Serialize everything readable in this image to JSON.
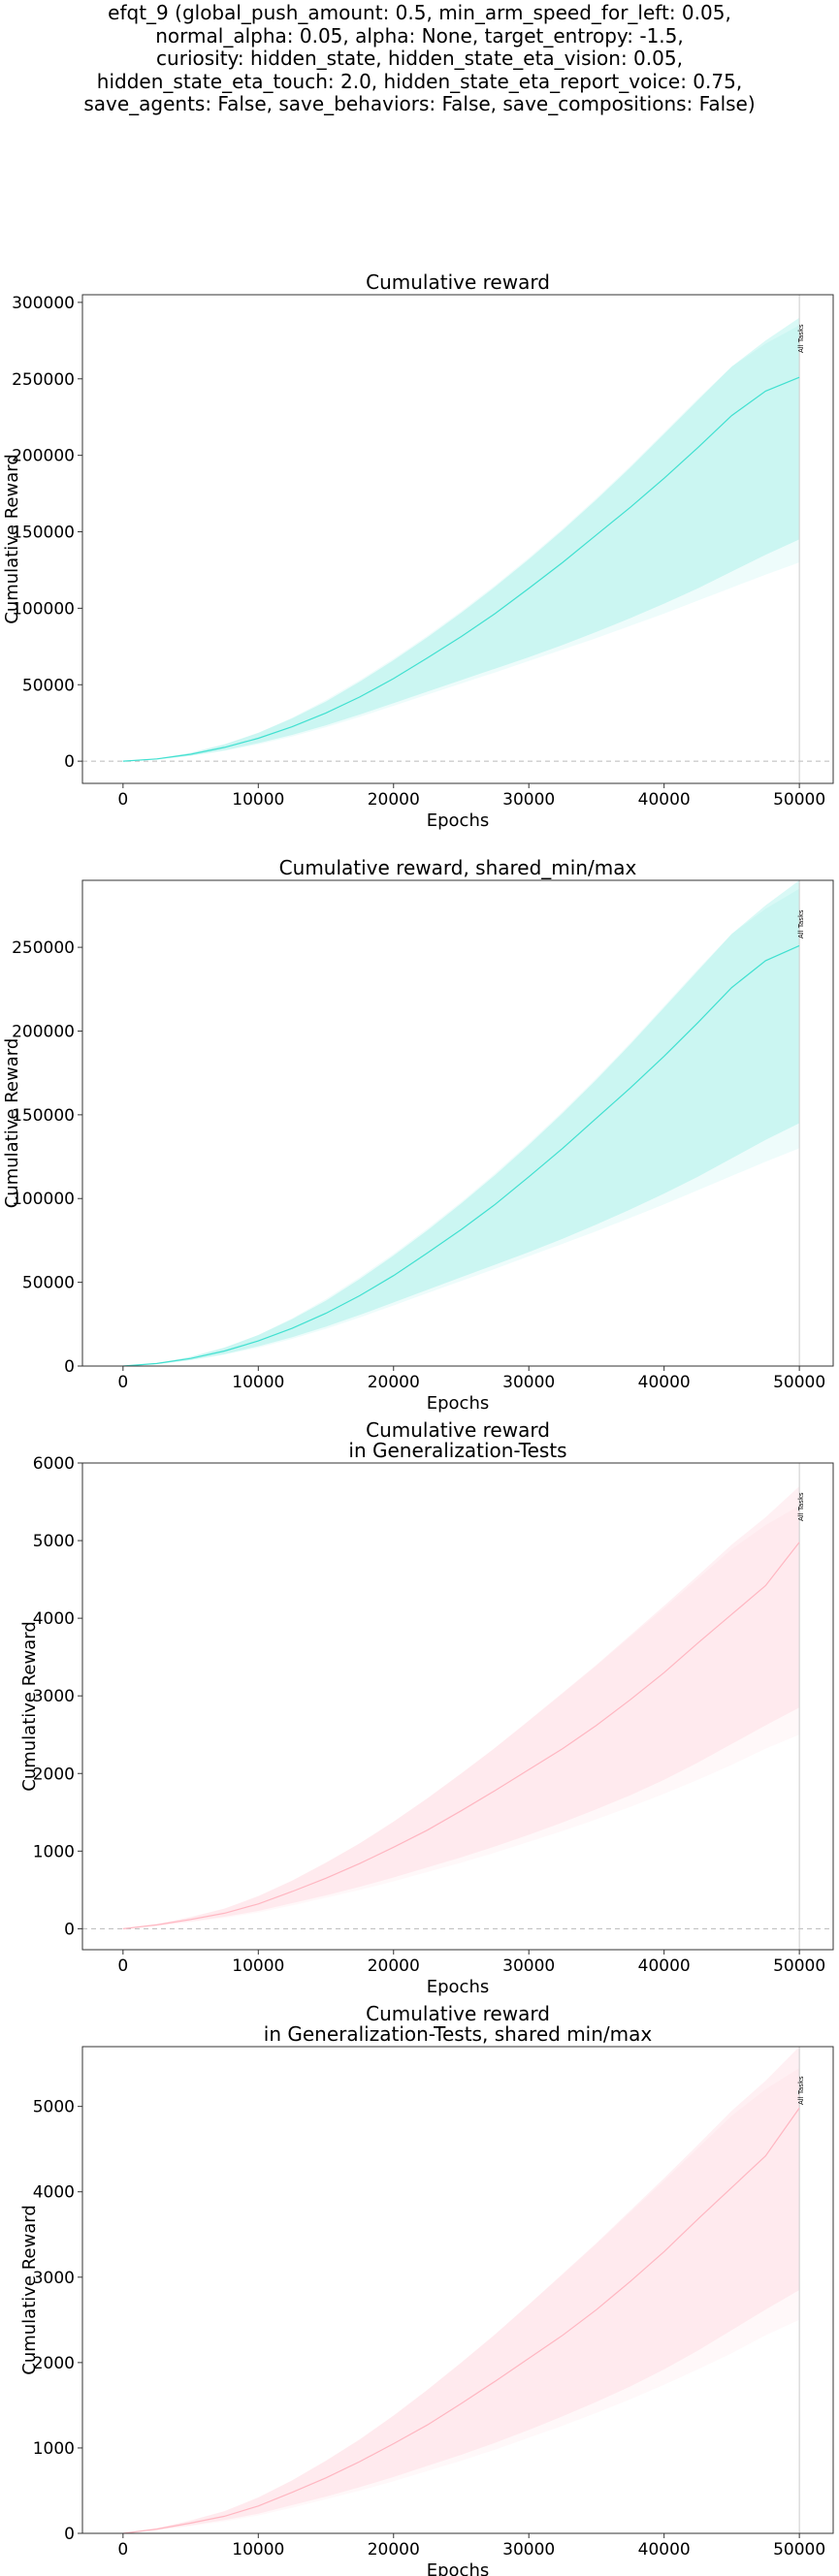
{
  "figure_title_lines": [
    "efqt_9 (global_push_amount: 0.5, min_arm_speed_for_left: 0.05,",
    "normal_alpha: 0.05, alpha: None, target_entropy: -1.5,",
    "curiosity: hidden_state, hidden_state_eta_vision: 0.05,",
    "hidden_state_eta_touch: 2.0, hidden_state_eta_report_voice: 0.75,",
    "save_agents: False, save_behaviors: False, save_compositions: False)"
  ],
  "colors": {
    "train_line": "#40e0d0",
    "train_band": "#40e0d0",
    "gen_line": "#ffb6c1",
    "gen_band": "#ffb6c1",
    "vline": "#cccccc",
    "zero_line": "#bbbbbb"
  },
  "chart_data": [
    {
      "type": "line",
      "title_lines": [
        "Cumulative reward"
      ],
      "xlabel": "Epochs",
      "ylabel": "Cumulative Reward",
      "xlim": [
        -3000,
        52500
      ],
      "ylim": [
        -14500,
        305000
      ],
      "xticks": [
        0,
        10000,
        20000,
        30000,
        40000,
        50000
      ],
      "yticks": [
        0,
        50000,
        100000,
        150000,
        200000,
        250000,
        300000
      ],
      "zero_line": true,
      "vline": {
        "x": 50000,
        "label": "All Tasks"
      },
      "color_key": "train",
      "x": [
        0,
        2500,
        5000,
        7500,
        10000,
        12500,
        15000,
        17500,
        20000,
        22500,
        25000,
        27500,
        30000,
        32500,
        35000,
        37500,
        40000,
        42500,
        45000,
        47500,
        50000
      ],
      "mean": [
        0,
        1500,
        4500,
        9000,
        15000,
        22500,
        31500,
        42000,
        54000,
        67500,
        81500,
        96500,
        113000,
        130000,
        148000,
        166000,
        185000,
        205000,
        226000,
        242000,
        251000
      ],
      "max": [
        0,
        1800,
        5500,
        11000,
        18500,
        28000,
        39000,
        52000,
        66000,
        81000,
        97000,
        114000,
        132000,
        151000,
        171000,
        192000,
        214000,
        236000,
        258000,
        275000,
        290000
      ],
      "min": [
        0,
        1200,
        3600,
        7200,
        11800,
        17200,
        23500,
        30500,
        38000,
        45500,
        53000,
        60500,
        68000,
        76000,
        84500,
        93500,
        103000,
        113000,
        124000,
        135000,
        145000
      ],
      "max_outer": [
        0,
        1800,
        5500,
        11000,
        18500,
        28500,
        40000,
        53000,
        67000,
        82000,
        98000,
        115000,
        133000,
        152000,
        172000,
        193000,
        215000,
        237000,
        258000,
        273000,
        285000
      ],
      "min_outer": [
        0,
        1100,
        3300,
        6700,
        11000,
        16200,
        22200,
        29000,
        36200,
        43500,
        50800,
        58000,
        65500,
        73000,
        80500,
        88500,
        96500,
        105000,
        113500,
        122000,
        130000
      ]
    },
    {
      "type": "line",
      "title_lines": [
        "Cumulative reward, shared_min/max"
      ],
      "xlabel": "Epochs",
      "ylabel": "Cumulative Reward",
      "xlim": [
        -3000,
        52500
      ],
      "ylim": [
        0,
        290000
      ],
      "xticks": [
        0,
        10000,
        20000,
        30000,
        40000,
        50000
      ],
      "yticks": [
        0,
        50000,
        100000,
        150000,
        200000,
        250000
      ],
      "zero_line": false,
      "vline": {
        "x": 50000,
        "label": "All Tasks"
      },
      "color_key": "train",
      "x": [
        0,
        2500,
        5000,
        7500,
        10000,
        12500,
        15000,
        17500,
        20000,
        22500,
        25000,
        27500,
        30000,
        32500,
        35000,
        37500,
        40000,
        42500,
        45000,
        47500,
        50000
      ],
      "mean": [
        0,
        1500,
        4500,
        9000,
        15000,
        22500,
        31500,
        42000,
        54000,
        67500,
        81500,
        96500,
        113000,
        130000,
        148000,
        166000,
        185000,
        205000,
        226000,
        242000,
        251000
      ],
      "max": [
        0,
        1800,
        5500,
        11000,
        18500,
        28000,
        39000,
        52000,
        66000,
        81000,
        97000,
        114000,
        132000,
        151000,
        171000,
        192000,
        214000,
        236000,
        258000,
        275000,
        290000
      ],
      "min": [
        0,
        1200,
        3600,
        7200,
        11800,
        17200,
        23500,
        30500,
        38000,
        45500,
        53000,
        60500,
        68000,
        76000,
        84500,
        93500,
        103000,
        113000,
        124000,
        135000,
        145000
      ],
      "max_outer": [
        0,
        1800,
        5500,
        11000,
        18500,
        28500,
        40000,
        53000,
        67000,
        82000,
        98000,
        115000,
        133000,
        152000,
        172000,
        193000,
        215000,
        237000,
        258000,
        273000,
        285000
      ],
      "min_outer": [
        0,
        1100,
        3300,
        6700,
        11000,
        16200,
        22200,
        29000,
        36200,
        43500,
        50800,
        58000,
        65500,
        73000,
        80500,
        88500,
        96500,
        105000,
        113500,
        122000,
        130000
      ]
    },
    {
      "type": "line",
      "title_lines": [
        "Cumulative reward",
        "in Generalization-Tests"
      ],
      "xlabel": "Epochs",
      "ylabel": "Cumulative Reward",
      "xlim": [
        -3000,
        52500
      ],
      "ylim": [
        -270,
        6000
      ],
      "xticks": [
        0,
        10000,
        20000,
        30000,
        40000,
        50000
      ],
      "yticks": [
        0,
        1000,
        2000,
        3000,
        4000,
        5000,
        6000
      ],
      "zero_line": true,
      "vline": {
        "x": 50000,
        "label": "All Tasks"
      },
      "color_key": "gen",
      "x": [
        0,
        2500,
        5000,
        7500,
        10000,
        12500,
        15000,
        17500,
        20000,
        22500,
        25000,
        27500,
        30000,
        32500,
        35000,
        37500,
        40000,
        42500,
        45000,
        47500,
        50000
      ],
      "mean": [
        0,
        50,
        120,
        200,
        320,
        480,
        650,
        840,
        1050,
        1270,
        1520,
        1780,
        2050,
        2320,
        2620,
        2950,
        3300,
        3680,
        4050,
        4420,
        4980
      ],
      "max": [
        0,
        60,
        150,
        260,
        420,
        620,
        850,
        1100,
        1380,
        1680,
        2000,
        2330,
        2680,
        3040,
        3400,
        3780,
        4160,
        4550,
        4950,
        5300,
        5700
      ],
      "min": [
        0,
        40,
        95,
        155,
        230,
        330,
        430,
        540,
        660,
        790,
        920,
        1060,
        1210,
        1370,
        1540,
        1720,
        1920,
        2140,
        2380,
        2620,
        2850
      ],
      "max_outer": [
        0,
        60,
        150,
        260,
        420,
        620,
        850,
        1100,
        1380,
        1680,
        2000,
        2330,
        2680,
        3030,
        3390,
        3760,
        4130,
        4510,
        4890,
        5200,
        5450
      ],
      "min_outer": [
        0,
        35,
        85,
        140,
        210,
        300,
        400,
        500,
        610,
        730,
        850,
        980,
        1120,
        1260,
        1410,
        1570,
        1740,
        1920,
        2110,
        2320,
        2500
      ]
    },
    {
      "type": "line",
      "title_lines": [
        "Cumulative reward",
        "in Generalization-Tests, shared min/max"
      ],
      "xlabel": "Epochs",
      "ylabel": "Cumulative Reward",
      "xlim": [
        -3000,
        52500
      ],
      "ylim": [
        0,
        5700
      ],
      "xticks": [
        0,
        10000,
        20000,
        30000,
        40000,
        50000
      ],
      "yticks": [
        0,
        1000,
        2000,
        3000,
        4000,
        5000
      ],
      "zero_line": false,
      "vline": {
        "x": 50000,
        "label": "All Tasks"
      },
      "color_key": "gen",
      "x": [
        0,
        2500,
        5000,
        7500,
        10000,
        12500,
        15000,
        17500,
        20000,
        22500,
        25000,
        27500,
        30000,
        32500,
        35000,
        37500,
        40000,
        42500,
        45000,
        47500,
        50000
      ],
      "mean": [
        0,
        50,
        120,
        200,
        320,
        480,
        650,
        840,
        1050,
        1270,
        1520,
        1780,
        2050,
        2320,
        2620,
        2950,
        3300,
        3680,
        4050,
        4420,
        4980
      ],
      "max": [
        0,
        60,
        150,
        260,
        420,
        620,
        850,
        1100,
        1380,
        1680,
        2000,
        2330,
        2680,
        3040,
        3400,
        3780,
        4160,
        4550,
        4950,
        5300,
        5700
      ],
      "min": [
        0,
        40,
        95,
        155,
        230,
        330,
        430,
        540,
        660,
        790,
        920,
        1060,
        1210,
        1370,
        1540,
        1720,
        1920,
        2140,
        2380,
        2620,
        2850
      ],
      "max_outer": [
        0,
        60,
        150,
        260,
        420,
        620,
        850,
        1100,
        1380,
        1680,
        2000,
        2330,
        2680,
        3030,
        3390,
        3760,
        4130,
        4510,
        4890,
        5200,
        5450
      ],
      "min_outer": [
        0,
        35,
        85,
        140,
        210,
        300,
        400,
        500,
        610,
        730,
        850,
        980,
        1120,
        1260,
        1410,
        1570,
        1740,
        1920,
        2110,
        2320,
        2500
      ]
    }
  ]
}
